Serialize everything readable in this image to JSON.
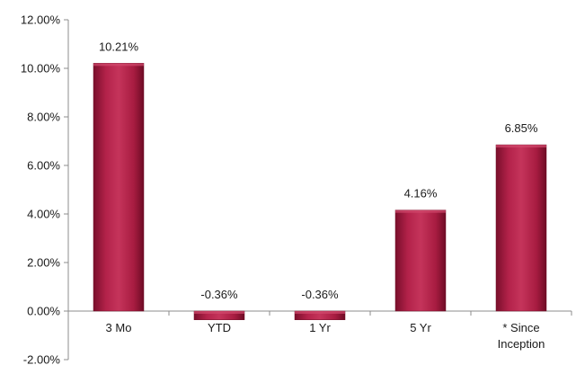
{
  "chart_data": {
    "type": "bar",
    "categories": [
      "3 Mo",
      "YTD",
      "1 Yr",
      "5 Yr",
      "* Since Inception"
    ],
    "category_label_lines": [
      [
        "3 Mo"
      ],
      [
        "YTD"
      ],
      [
        "1 Yr"
      ],
      [
        "5 Yr"
      ],
      [
        "* Since",
        "Inception"
      ]
    ],
    "values": [
      10.21,
      -0.36,
      -0.36,
      4.16,
      6.85
    ],
    "data_labels": [
      "10.21%",
      "-0.36%",
      "-0.36%",
      "4.16%",
      "6.85%"
    ],
    "ylim": [
      -2,
      12
    ],
    "yticks": [
      -2,
      0,
      2,
      4,
      6,
      8,
      10,
      12
    ],
    "ytick_labels": [
      "-2.00%",
      "0.00%",
      "2.00%",
      "4.00%",
      "6.00%",
      "8.00%",
      "10.00%",
      "12.00%"
    ],
    "title": "",
    "xlabel": "",
    "ylabel": "",
    "grid": false,
    "legend": "none",
    "bar_color": "#b01e45"
  }
}
